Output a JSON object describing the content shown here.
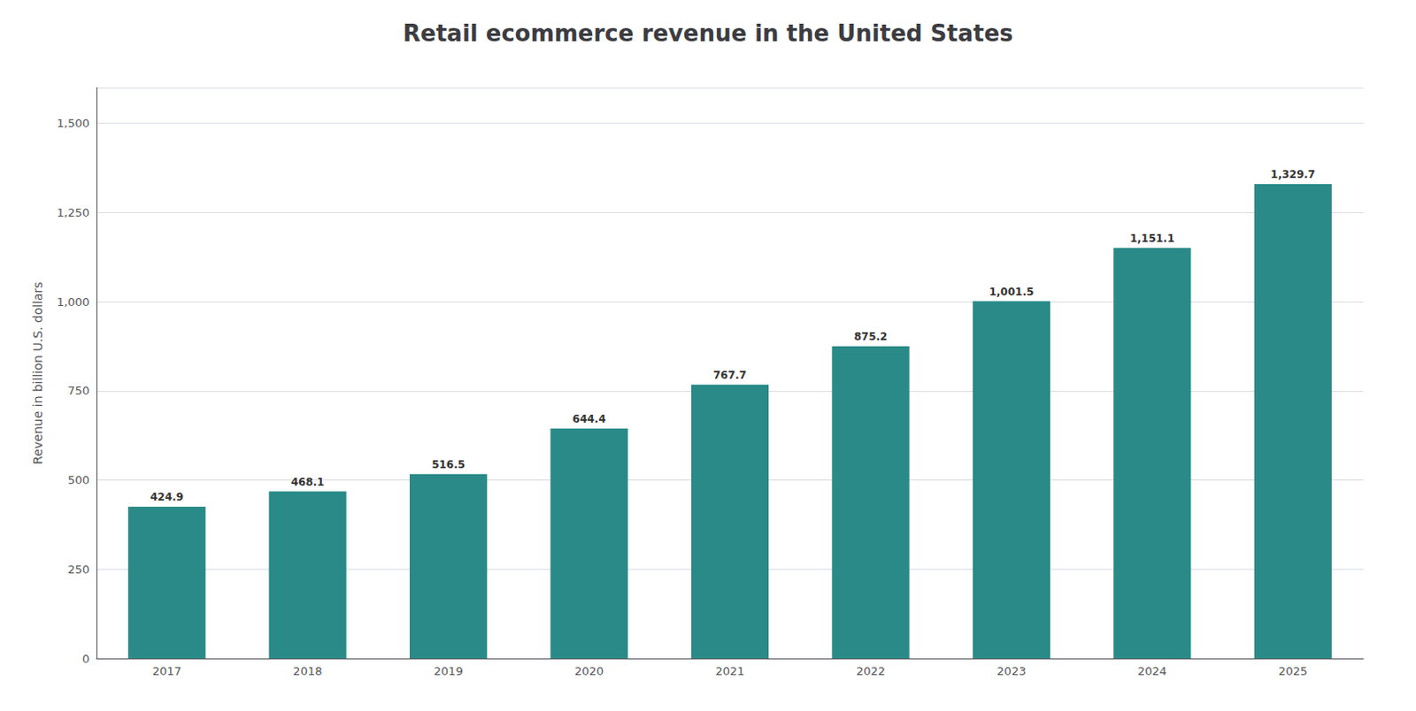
{
  "chart_data": {
    "type": "bar",
    "title": "Retail ecommerce revenue in the United States",
    "categories": [
      "2017",
      "2018",
      "2019",
      "2020",
      "2021",
      "2022",
      "2023",
      "2024",
      "2025"
    ],
    "values": [
      424.9,
      468.1,
      516.5,
      644.4,
      767.7,
      875.2,
      1001.5,
      1151.1,
      1329.7
    ],
    "value_labels": [
      "424.9",
      "468.1",
      "516.5",
      "644.4",
      "767.7",
      "875.2",
      "1,001.5",
      "1,151.1",
      "1,329.7"
    ],
    "data_labels": true,
    "color": "#2a8a87",
    "ylabel": "Revenue in billion U.S. dollars",
    "ylim": [
      0,
      1600
    ],
    "yticks": [
      0,
      250,
      500,
      750,
      {
        "value": 1000,
        "label": "1,000"
      },
      {
        "value": 1250,
        "label": "1,250"
      },
      {
        "value": 1500,
        "label": "1,500"
      }
    ],
    "grid": true
  }
}
